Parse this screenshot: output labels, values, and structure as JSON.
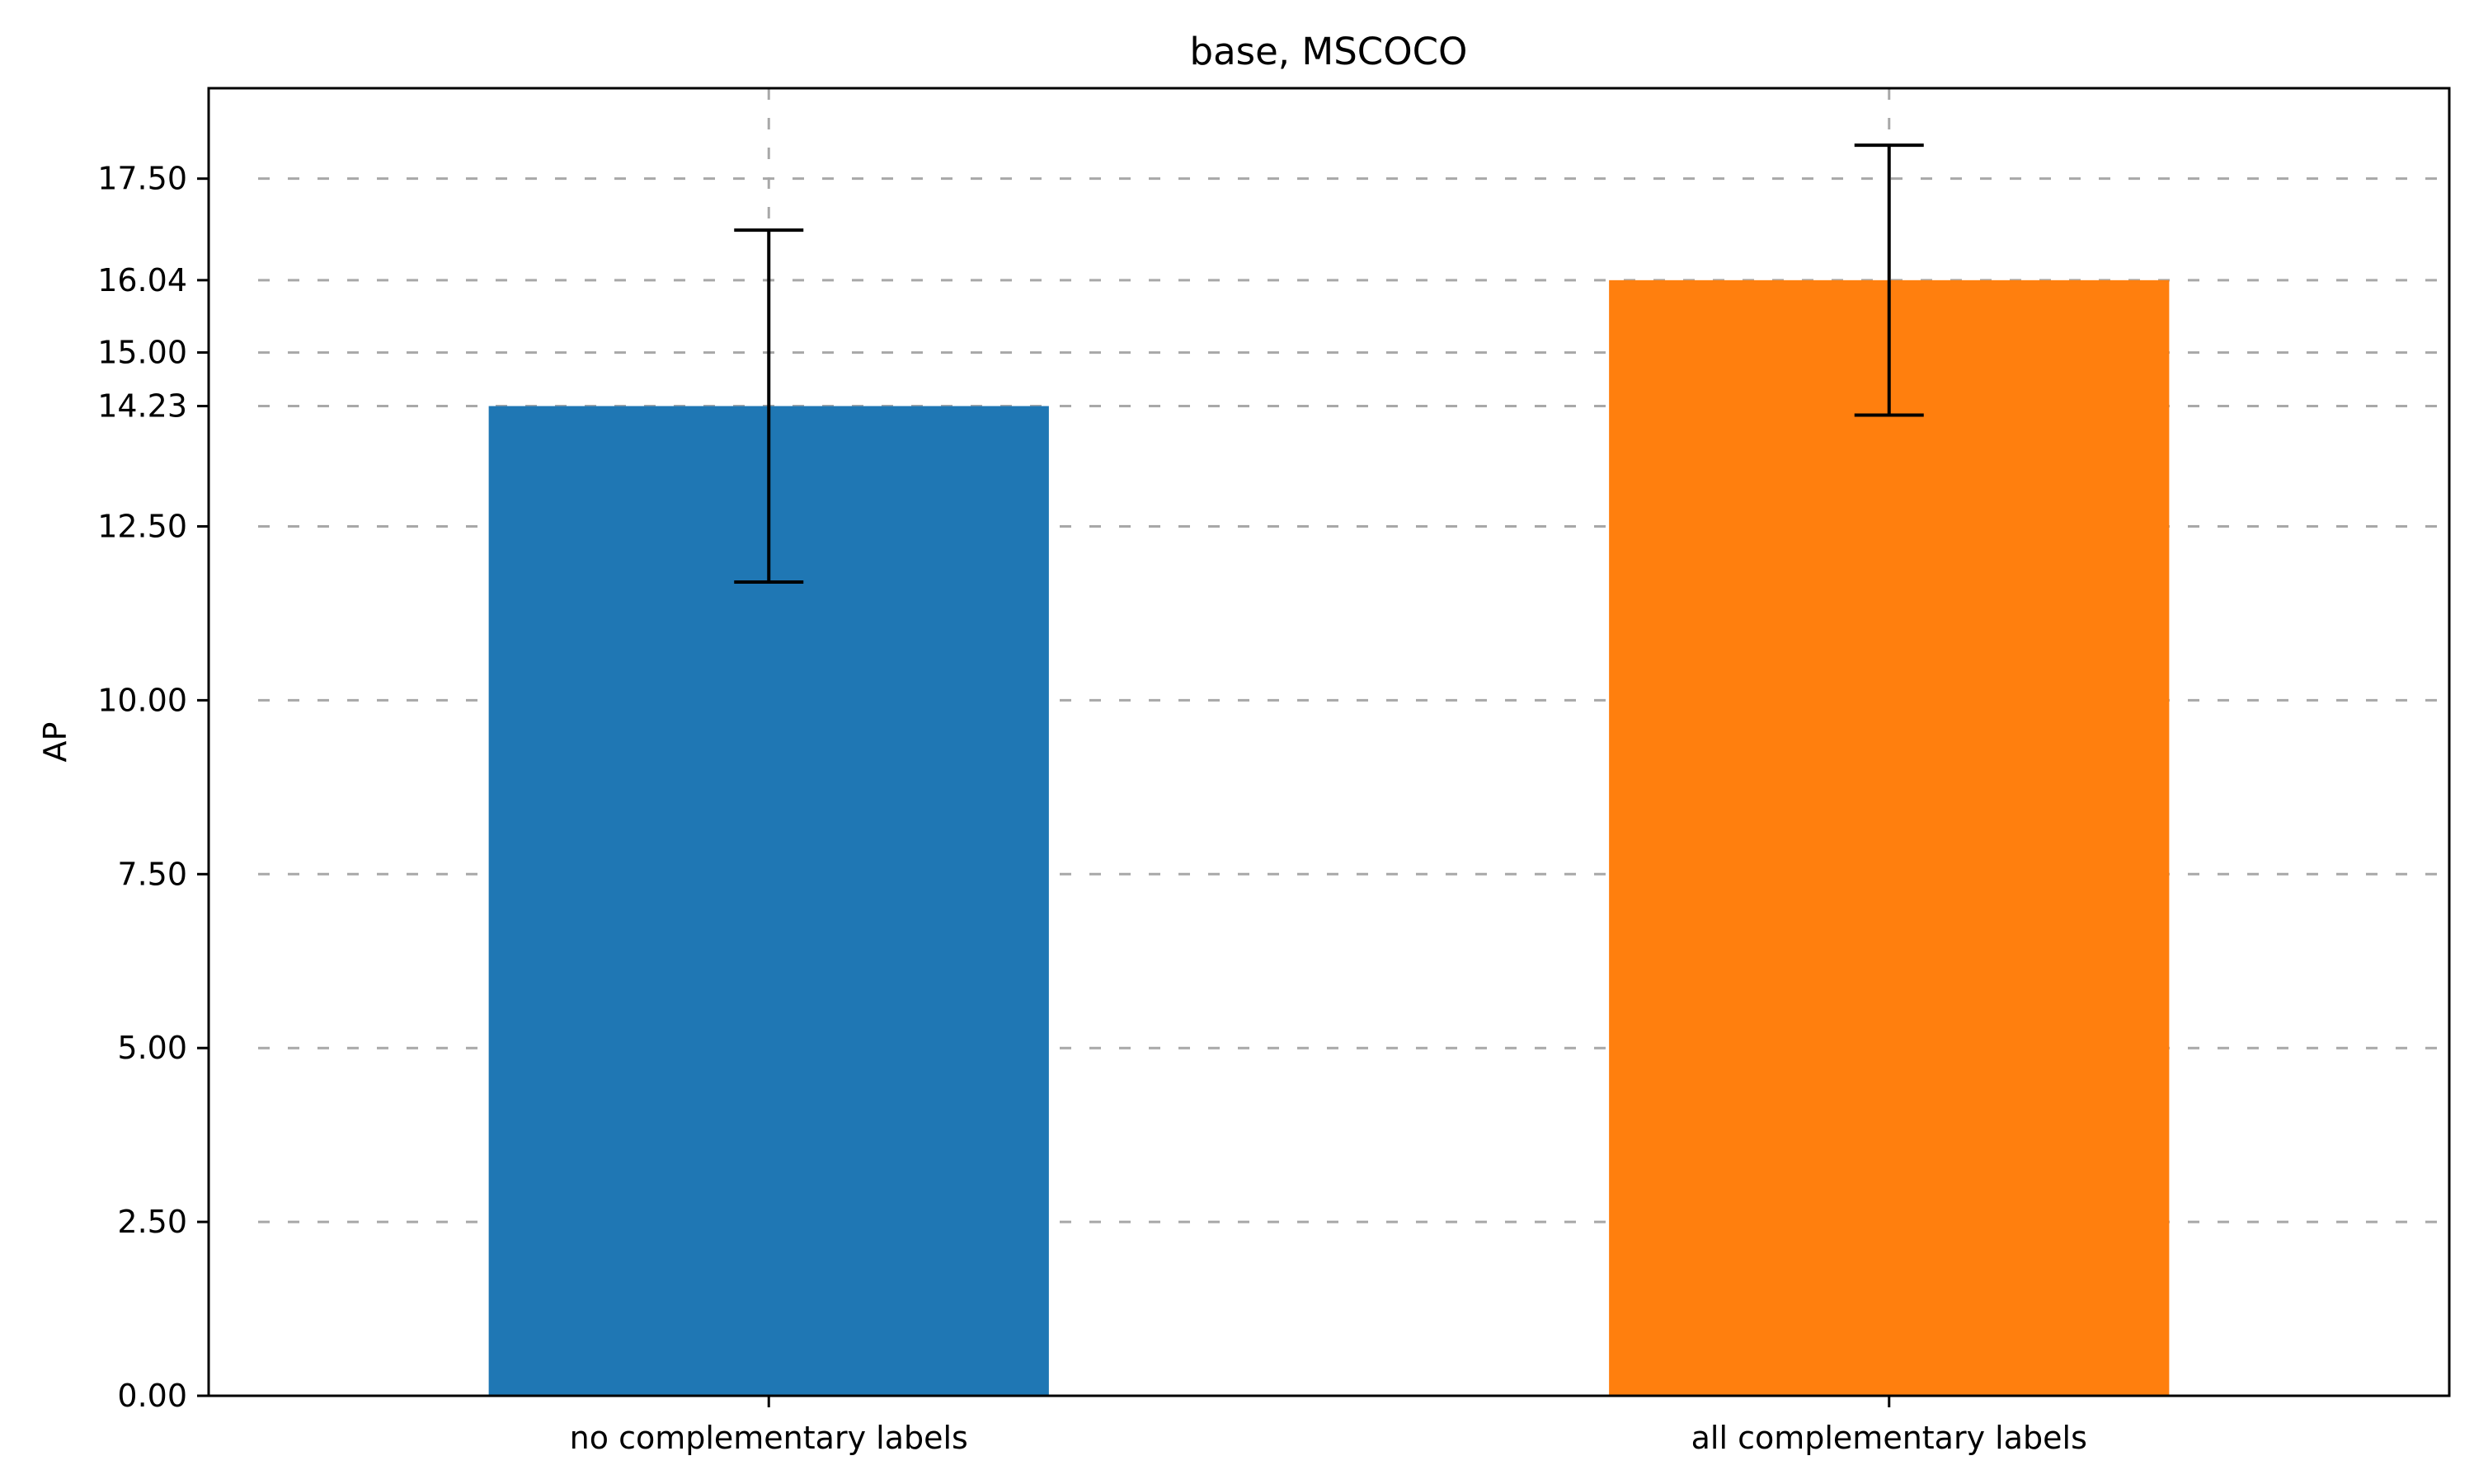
{
  "chart_data": {
    "type": "bar",
    "title": "base, MSCOCO",
    "xlabel": "",
    "ylabel": "AP",
    "categories": [
      "no complementary labels",
      "all complementary labels"
    ],
    "values": [
      14.23,
      16.04
    ],
    "error": [
      2.53,
      1.94
    ],
    "colors": [
      "#1f77b4",
      "#ff7f0e"
    ],
    "ylim": [
      0,
      18.8
    ],
    "yticks": [
      0.0,
      2.5,
      5.0,
      7.5,
      10.0,
      12.5,
      14.23,
      15.0,
      16.04,
      17.5
    ],
    "ytick_labels": [
      "0.00",
      "2.50",
      "5.00",
      "7.50",
      "10.00",
      "12.50",
      "14.23",
      "15.00",
      "16.04",
      "17.50"
    ],
    "grid": true,
    "grid_style": "dashed"
  }
}
